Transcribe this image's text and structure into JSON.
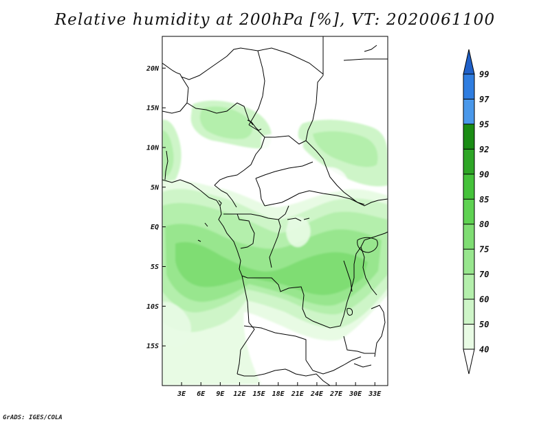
{
  "title": "Relative humidity at 200hPa [%], VT: 2020061100",
  "credit": "GrADS: IGES/COLA",
  "map": {
    "lon_range": [
      0,
      35
    ],
    "lat_range": [
      -20,
      24
    ],
    "lat_ticks": [
      {
        "value": 20,
        "label": "20N"
      },
      {
        "value": 15,
        "label": "15N"
      },
      {
        "value": 10,
        "label": "10N"
      },
      {
        "value": 5,
        "label": "5N"
      },
      {
        "value": 0,
        "label": "EQ"
      },
      {
        "value": -5,
        "label": "5S"
      },
      {
        "value": -10,
        "label": "10S"
      },
      {
        "value": -15,
        "label": "15S"
      }
    ],
    "lon_ticks": [
      {
        "value": 3,
        "label": "3E"
      },
      {
        "value": 6,
        "label": "6E"
      },
      {
        "value": 9,
        "label": "9E"
      },
      {
        "value": 12,
        "label": "12E"
      },
      {
        "value": 15,
        "label": "15E"
      },
      {
        "value": 18,
        "label": "18E"
      },
      {
        "value": 21,
        "label": "21E"
      },
      {
        "value": 24,
        "label": "24E"
      },
      {
        "value": 27,
        "label": "27E"
      },
      {
        "value": 30,
        "label": "30E"
      },
      {
        "value": 33,
        "label": "33E"
      }
    ]
  },
  "colorbar": {
    "levels": [
      {
        "label": "40",
        "color": "#e8fbe4"
      },
      {
        "label": "50",
        "color": "#cef5c8"
      },
      {
        "label": "60",
        "color": "#b4efac"
      },
      {
        "label": "70",
        "color": "#98e68e"
      },
      {
        "label": "75",
        "color": "#7fdd73"
      },
      {
        "label": "80",
        "color": "#5fd252"
      },
      {
        "label": "85",
        "color": "#45c23a"
      },
      {
        "label": "90",
        "color": "#2ea626"
      },
      {
        "label": "92",
        "color": "#1a8c14"
      },
      {
        "label": "95",
        "color": "#4a98ea"
      },
      {
        "label": "97",
        "color": "#2f7de0"
      },
      {
        "label": "99",
        "color": "#1f60c8"
      }
    ],
    "under_color": "#ffffff",
    "over_color": "#1f60c8"
  }
}
